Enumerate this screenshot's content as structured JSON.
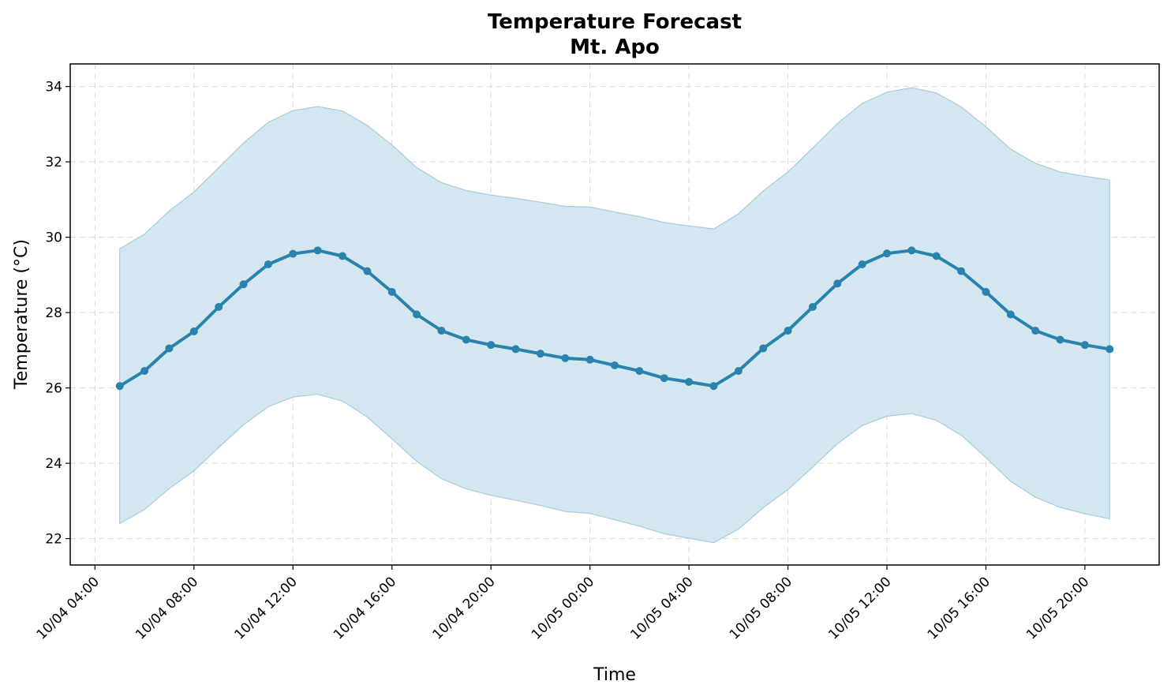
{
  "chart_data": {
    "type": "line",
    "title": "Temperature Forecast",
    "subtitle": "Mt. Apo",
    "xlabel": "Time",
    "ylabel": "Temperature (°C)",
    "ylim": [
      21.3,
      34.6
    ],
    "grid": true,
    "colors": {
      "line": "#2a83ad",
      "band": "#d4e6ef",
      "band_edge": "#a9cbdc"
    },
    "x_ticks": [
      "10/04 04:00",
      "10/04 08:00",
      "10/04 12:00",
      "10/04 16:00",
      "10/04 20:00",
      "10/05 00:00",
      "10/05 04:00",
      "10/05 08:00",
      "10/05 12:00",
      "10/05 16:00",
      "10/05 20:00"
    ],
    "y_ticks": [
      22,
      24,
      26,
      28,
      30,
      32,
      34
    ],
    "x": [
      "10/04 05:00",
      "10/04 06:00",
      "10/04 07:00",
      "10/04 08:00",
      "10/04 09:00",
      "10/04 10:00",
      "10/04 11:00",
      "10/04 12:00",
      "10/04 13:00",
      "10/04 14:00",
      "10/04 15:00",
      "10/04 16:00",
      "10/04 17:00",
      "10/04 18:00",
      "10/04 19:00",
      "10/04 20:00",
      "10/04 21:00",
      "10/04 22:00",
      "10/04 23:00",
      "10/05 00:00",
      "10/05 01:00",
      "10/05 02:00",
      "10/05 03:00",
      "10/05 04:00",
      "10/05 05:00",
      "10/05 06:00",
      "10/05 07:00",
      "10/05 08:00",
      "10/05 09:00",
      "10/05 10:00",
      "10/05 11:00",
      "10/05 12:00",
      "10/05 13:00",
      "10/05 14:00",
      "10/05 15:00",
      "10/05 16:00",
      "10/05 17:00",
      "10/05 18:00",
      "10/05 19:00",
      "10/05 20:00",
      "10/05 21:00"
    ],
    "series": [
      {
        "values": [
          26.05,
          26.45,
          27.05,
          27.5,
          28.15,
          28.75,
          29.28,
          29.56,
          29.65,
          29.5,
          29.1,
          28.55,
          27.95,
          27.52,
          27.28,
          27.14,
          27.03,
          26.91,
          26.79,
          26.75,
          26.6,
          26.45,
          26.26,
          26.16,
          26.05,
          26.45,
          27.05,
          27.52,
          28.15,
          28.77,
          29.28,
          29.57,
          29.65,
          29.5,
          29.1,
          28.55,
          27.95,
          27.52,
          27.28,
          27.14,
          27.03
        ],
        "lower": [
          22.4,
          22.77,
          23.33,
          23.8,
          24.42,
          25.02,
          25.5,
          25.76,
          25.83,
          25.65,
          25.23,
          24.65,
          24.05,
          23.59,
          23.32,
          23.15,
          23.02,
          22.88,
          22.72,
          22.67,
          22.5,
          22.33,
          22.13,
          22.01,
          21.89,
          22.25,
          22.82,
          23.3,
          23.9,
          24.52,
          25.0,
          25.25,
          25.32,
          25.14,
          24.75,
          24.15,
          23.52,
          23.1,
          22.83,
          22.66,
          22.53
        ],
        "upper": [
          29.69,
          30.08,
          30.7,
          31.2,
          31.85,
          32.5,
          33.05,
          33.36,
          33.47,
          33.35,
          32.97,
          32.45,
          31.85,
          31.45,
          31.24,
          31.12,
          31.03,
          30.93,
          30.82,
          30.8,
          30.67,
          30.55,
          30.39,
          30.3,
          30.22,
          30.62,
          31.23,
          31.73,
          32.37,
          33.02,
          33.55,
          33.85,
          33.97,
          33.83,
          33.46,
          32.93,
          32.34,
          31.96,
          31.73,
          31.62,
          31.52
        ]
      }
    ]
  }
}
